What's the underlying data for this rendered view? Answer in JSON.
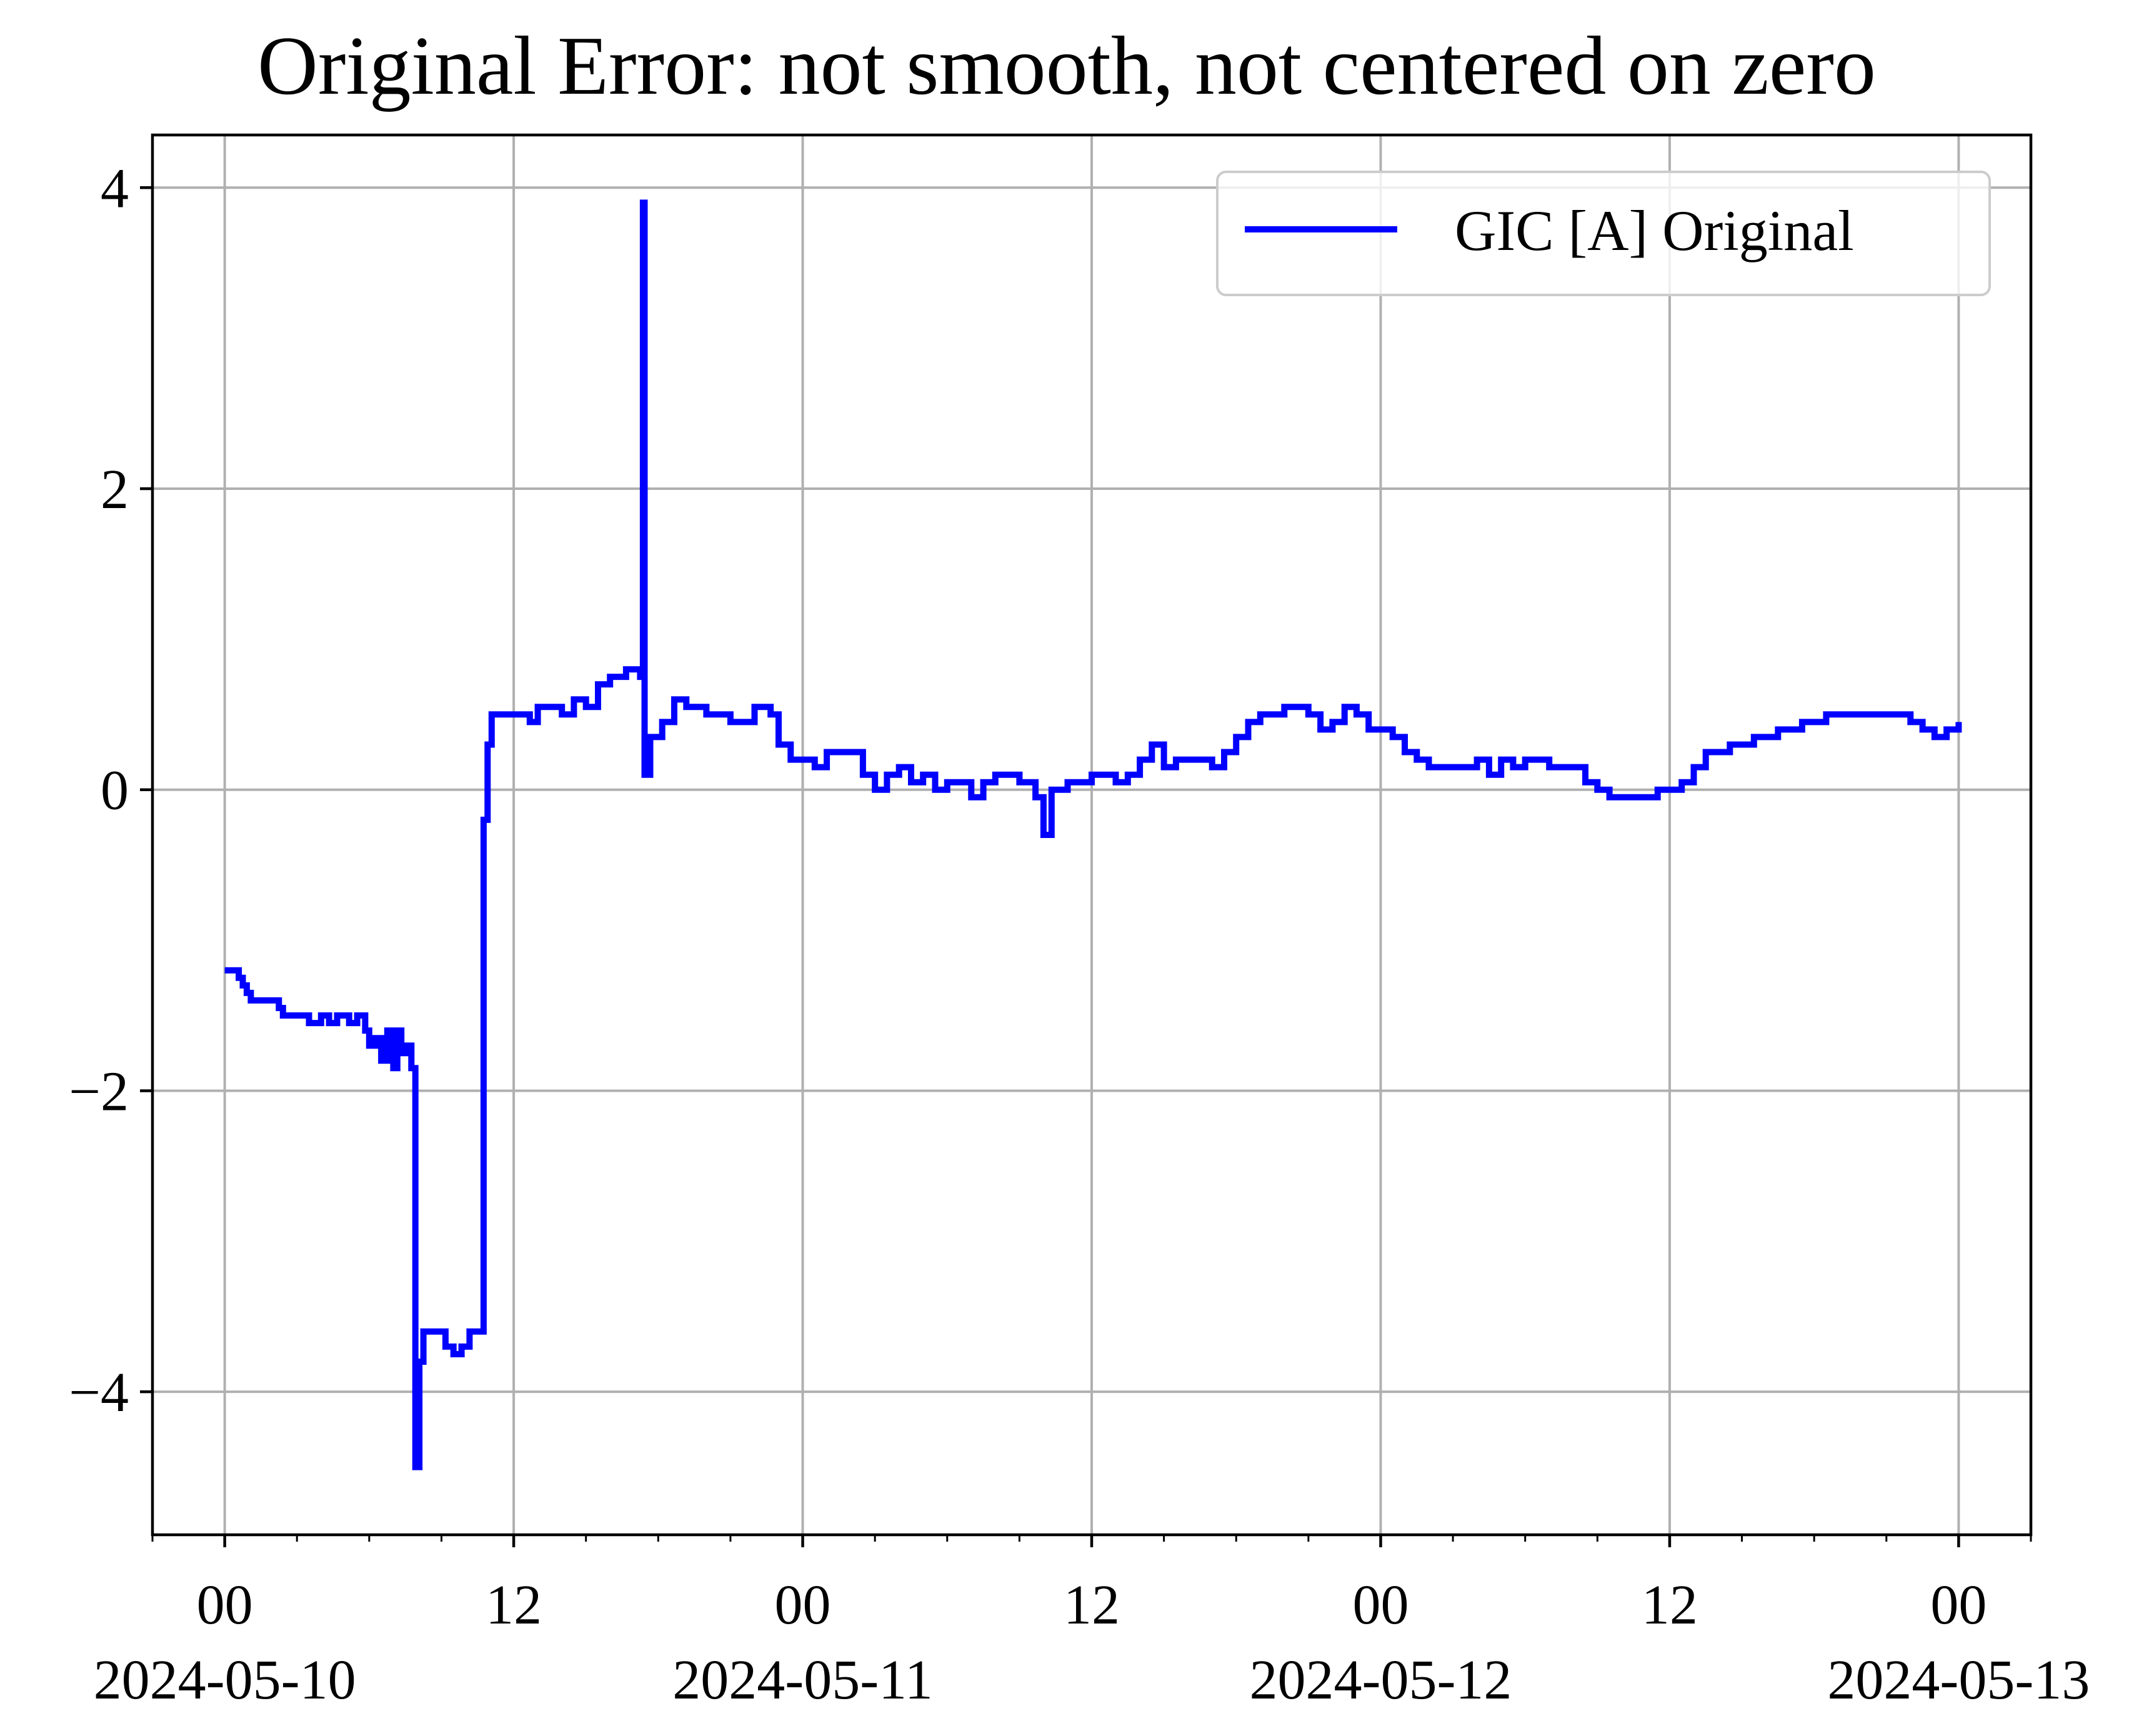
{
  "chart_data": {
    "type": "line",
    "title": "Original Error: not smooth, not centered on zero",
    "xlabel": "",
    "ylabel": "",
    "x_range": [
      "2024-05-09T21:00",
      "2024-05-13T03:00"
    ],
    "ylim": [
      -4.95,
      4.35
    ],
    "grid": true,
    "legend": {
      "placement": "top-right",
      "entries": [
        "GIC [A] Original"
      ]
    },
    "x_major_ticks": [
      {
        "time": "2024-05-10T00:00",
        "label": "00",
        "date": "2024-05-10"
      },
      {
        "time": "2024-05-10T12:00",
        "label": "12",
        "date": ""
      },
      {
        "time": "2024-05-11T00:00",
        "label": "00",
        "date": "2024-05-11"
      },
      {
        "time": "2024-05-11T12:00",
        "label": "12",
        "date": ""
      },
      {
        "time": "2024-05-12T00:00",
        "label": "00",
        "date": "2024-05-12"
      },
      {
        "time": "2024-05-12T12:00",
        "label": "12",
        "date": ""
      },
      {
        "time": "2024-05-13T00:00",
        "label": "00",
        "date": "2024-05-13"
      }
    ],
    "y_ticks": [
      {
        "value": -4,
        "label": "−4"
      },
      {
        "value": -2,
        "label": "−2"
      },
      {
        "value": 0,
        "label": "0"
      },
      {
        "value": 2,
        "label": "2"
      },
      {
        "value": 4,
        "label": "4"
      }
    ],
    "series": [
      {
        "name": "GIC [A] Original",
        "color": "#0000ff",
        "points": [
          [
            "2024-05-10T00:00",
            -1.2
          ],
          [
            "2024-05-10T00:30",
            -1.2
          ],
          [
            "2024-05-10T00:35",
            -1.25
          ],
          [
            "2024-05-10T00:45",
            -1.3
          ],
          [
            "2024-05-10T00:55",
            -1.35
          ],
          [
            "2024-05-10T01:05",
            -1.4
          ],
          [
            "2024-05-10T02:05",
            -1.4
          ],
          [
            "2024-05-10T02:15",
            -1.45
          ],
          [
            "2024-05-10T02:25",
            -1.5
          ],
          [
            "2024-05-10T03:20",
            -1.5
          ],
          [
            "2024-05-10T03:30",
            -1.55
          ],
          [
            "2024-05-10T04:00",
            -1.5
          ],
          [
            "2024-05-10T04:20",
            -1.55
          ],
          [
            "2024-05-10T04:40",
            -1.5
          ],
          [
            "2024-05-10T05:10",
            -1.55
          ],
          [
            "2024-05-10T05:30",
            -1.5
          ],
          [
            "2024-05-10T05:50",
            -1.6
          ],
          [
            "2024-05-10T06:00",
            -1.7
          ],
          [
            "2024-05-10T06:15",
            -1.65
          ],
          [
            "2024-05-10T06:30",
            -1.8
          ],
          [
            "2024-05-10T06:45",
            -1.6
          ],
          [
            "2024-05-10T07:00",
            -1.85
          ],
          [
            "2024-05-10T07:10",
            -1.6
          ],
          [
            "2024-05-10T07:20",
            -1.75
          ],
          [
            "2024-05-10T07:30",
            -1.7
          ],
          [
            "2024-05-10T07:45",
            -1.85
          ],
          [
            "2024-05-10T07:55",
            -4.5
          ],
          [
            "2024-05-10T08:05",
            -3.8
          ],
          [
            "2024-05-10T08:15",
            -3.6
          ],
          [
            "2024-05-10T09:00",
            -3.6
          ],
          [
            "2024-05-10T09:10",
            -3.7
          ],
          [
            "2024-05-10T09:30",
            -3.75
          ],
          [
            "2024-05-10T09:50",
            -3.7
          ],
          [
            "2024-05-10T10:10",
            -3.6
          ],
          [
            "2024-05-10T10:30",
            -3.6
          ],
          [
            "2024-05-10T10:45",
            -0.2
          ],
          [
            "2024-05-10T10:55",
            0.3
          ],
          [
            "2024-05-10T11:05",
            0.5
          ],
          [
            "2024-05-10T12:00",
            0.5
          ],
          [
            "2024-05-10T12:40",
            0.45
          ],
          [
            "2024-05-10T13:00",
            0.55
          ],
          [
            "2024-05-10T14:00",
            0.5
          ],
          [
            "2024-05-10T14:30",
            0.6
          ],
          [
            "2024-05-10T15:00",
            0.55
          ],
          [
            "2024-05-10T15:30",
            0.7
          ],
          [
            "2024-05-10T16:00",
            0.75
          ],
          [
            "2024-05-10T16:40",
            0.8
          ],
          [
            "2024-05-10T17:15",
            0.75
          ],
          [
            "2024-05-10T17:22",
            3.9
          ],
          [
            "2024-05-10T17:26",
            0.1
          ],
          [
            "2024-05-10T17:40",
            0.35
          ],
          [
            "2024-05-10T18:10",
            0.45
          ],
          [
            "2024-05-10T18:40",
            0.6
          ],
          [
            "2024-05-10T19:10",
            0.55
          ],
          [
            "2024-05-10T20:00",
            0.5
          ],
          [
            "2024-05-10T21:00",
            0.45
          ],
          [
            "2024-05-10T22:00",
            0.55
          ],
          [
            "2024-05-10T22:40",
            0.5
          ],
          [
            "2024-05-10T23:00",
            0.3
          ],
          [
            "2024-05-10T23:30",
            0.2
          ],
          [
            "2024-05-11T00:00",
            0.2
          ],
          [
            "2024-05-11T00:30",
            0.15
          ],
          [
            "2024-05-11T01:00",
            0.25
          ],
          [
            "2024-05-11T02:00",
            0.25
          ],
          [
            "2024-05-11T02:30",
            0.1
          ],
          [
            "2024-05-11T03:00",
            0.0
          ],
          [
            "2024-05-11T03:30",
            0.1
          ],
          [
            "2024-05-11T04:00",
            0.15
          ],
          [
            "2024-05-11T04:30",
            0.05
          ],
          [
            "2024-05-11T05:00",
            0.1
          ],
          [
            "2024-05-11T05:30",
            0.0
          ],
          [
            "2024-05-11T06:00",
            0.05
          ],
          [
            "2024-05-11T07:00",
            -0.05
          ],
          [
            "2024-05-11T07:30",
            0.05
          ],
          [
            "2024-05-11T08:00",
            0.1
          ],
          [
            "2024-05-11T09:00",
            0.05
          ],
          [
            "2024-05-11T09:40",
            -0.05
          ],
          [
            "2024-05-11T10:00",
            -0.3
          ],
          [
            "2024-05-11T10:20",
            0.0
          ],
          [
            "2024-05-11T11:00",
            0.05
          ],
          [
            "2024-05-11T12:00",
            0.1
          ],
          [
            "2024-05-11T13:00",
            0.05
          ],
          [
            "2024-05-11T13:30",
            0.1
          ],
          [
            "2024-05-11T14:00",
            0.2
          ],
          [
            "2024-05-11T14:30",
            0.3
          ],
          [
            "2024-05-11T15:00",
            0.15
          ],
          [
            "2024-05-11T15:30",
            0.2
          ],
          [
            "2024-05-11T16:00",
            0.2
          ],
          [
            "2024-05-11T17:00",
            0.15
          ],
          [
            "2024-05-11T17:30",
            0.25
          ],
          [
            "2024-05-11T18:00",
            0.35
          ],
          [
            "2024-05-11T18:30",
            0.45
          ],
          [
            "2024-05-11T19:00",
            0.5
          ],
          [
            "2024-05-11T20:00",
            0.55
          ],
          [
            "2024-05-11T21:00",
            0.5
          ],
          [
            "2024-05-11T21:30",
            0.4
          ],
          [
            "2024-05-11T22:00",
            0.45
          ],
          [
            "2024-05-11T22:30",
            0.55
          ],
          [
            "2024-05-11T23:00",
            0.5
          ],
          [
            "2024-05-11T23:30",
            0.4
          ],
          [
            "2024-05-12T00:00",
            0.4
          ],
          [
            "2024-05-12T00:30",
            0.35
          ],
          [
            "2024-05-12T01:00",
            0.25
          ],
          [
            "2024-05-12T01:30",
            0.2
          ],
          [
            "2024-05-12T02:00",
            0.15
          ],
          [
            "2024-05-12T03:00",
            0.15
          ],
          [
            "2024-05-12T04:00",
            0.2
          ],
          [
            "2024-05-12T04:30",
            0.1
          ],
          [
            "2024-05-12T05:00",
            0.2
          ],
          [
            "2024-05-12T05:30",
            0.15
          ],
          [
            "2024-05-12T06:00",
            0.2
          ],
          [
            "2024-05-12T07:00",
            0.15
          ],
          [
            "2024-05-12T08:00",
            0.15
          ],
          [
            "2024-05-12T08:30",
            0.05
          ],
          [
            "2024-05-12T09:00",
            0.0
          ],
          [
            "2024-05-12T09:30",
            -0.05
          ],
          [
            "2024-05-12T10:00",
            -0.05
          ],
          [
            "2024-05-12T11:00",
            -0.05
          ],
          [
            "2024-05-12T11:30",
            0.0
          ],
          [
            "2024-05-12T12:00",
            0.0
          ],
          [
            "2024-05-12T12:30",
            0.05
          ],
          [
            "2024-05-12T13:00",
            0.15
          ],
          [
            "2024-05-12T13:30",
            0.25
          ],
          [
            "2024-05-12T14:30",
            0.3
          ],
          [
            "2024-05-12T15:30",
            0.35
          ],
          [
            "2024-05-12T16:30",
            0.4
          ],
          [
            "2024-05-12T17:30",
            0.45
          ],
          [
            "2024-05-12T18:30",
            0.5
          ],
          [
            "2024-05-12T19:30",
            0.5
          ],
          [
            "2024-05-12T20:30",
            0.5
          ],
          [
            "2024-05-12T21:30",
            0.5
          ],
          [
            "2024-05-12T22:00",
            0.45
          ],
          [
            "2024-05-12T22:30",
            0.4
          ],
          [
            "2024-05-12T23:00",
            0.35
          ],
          [
            "2024-05-12T23:30",
            0.4
          ],
          [
            "2024-05-13T00:00",
            0.45
          ]
        ]
      }
    ]
  }
}
